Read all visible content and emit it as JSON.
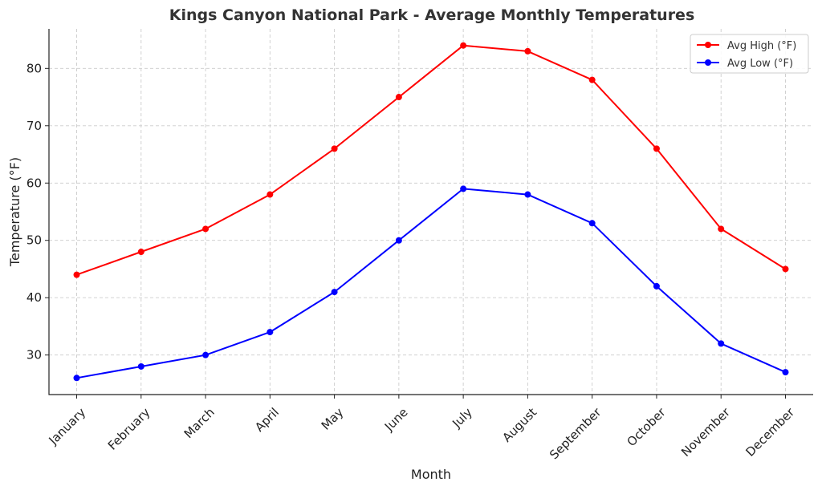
{
  "chart_data": {
    "type": "line",
    "title": "Kings Canyon National Park - Average Monthly Temperatures",
    "xlabel": "Month",
    "ylabel": "Temperature (°F)",
    "categories": [
      "January",
      "February",
      "March",
      "April",
      "May",
      "June",
      "July",
      "August",
      "September",
      "October",
      "November",
      "December"
    ],
    "ylim": [
      23.1,
      86.9
    ],
    "yticks": [
      30,
      40,
      50,
      60,
      70,
      80
    ],
    "grid": true,
    "legend_position": "top-right",
    "series": [
      {
        "name": "Avg High (°F)",
        "color": "#ff0000",
        "values": [
          44,
          48,
          52,
          58,
          66,
          75,
          84,
          83,
          78,
          66,
          52,
          45
        ]
      },
      {
        "name": "Avg Low (°F)",
        "color": "#0000ff",
        "values": [
          26,
          28,
          30,
          34,
          41,
          50,
          59,
          58,
          53,
          42,
          32,
          27
        ]
      }
    ]
  }
}
